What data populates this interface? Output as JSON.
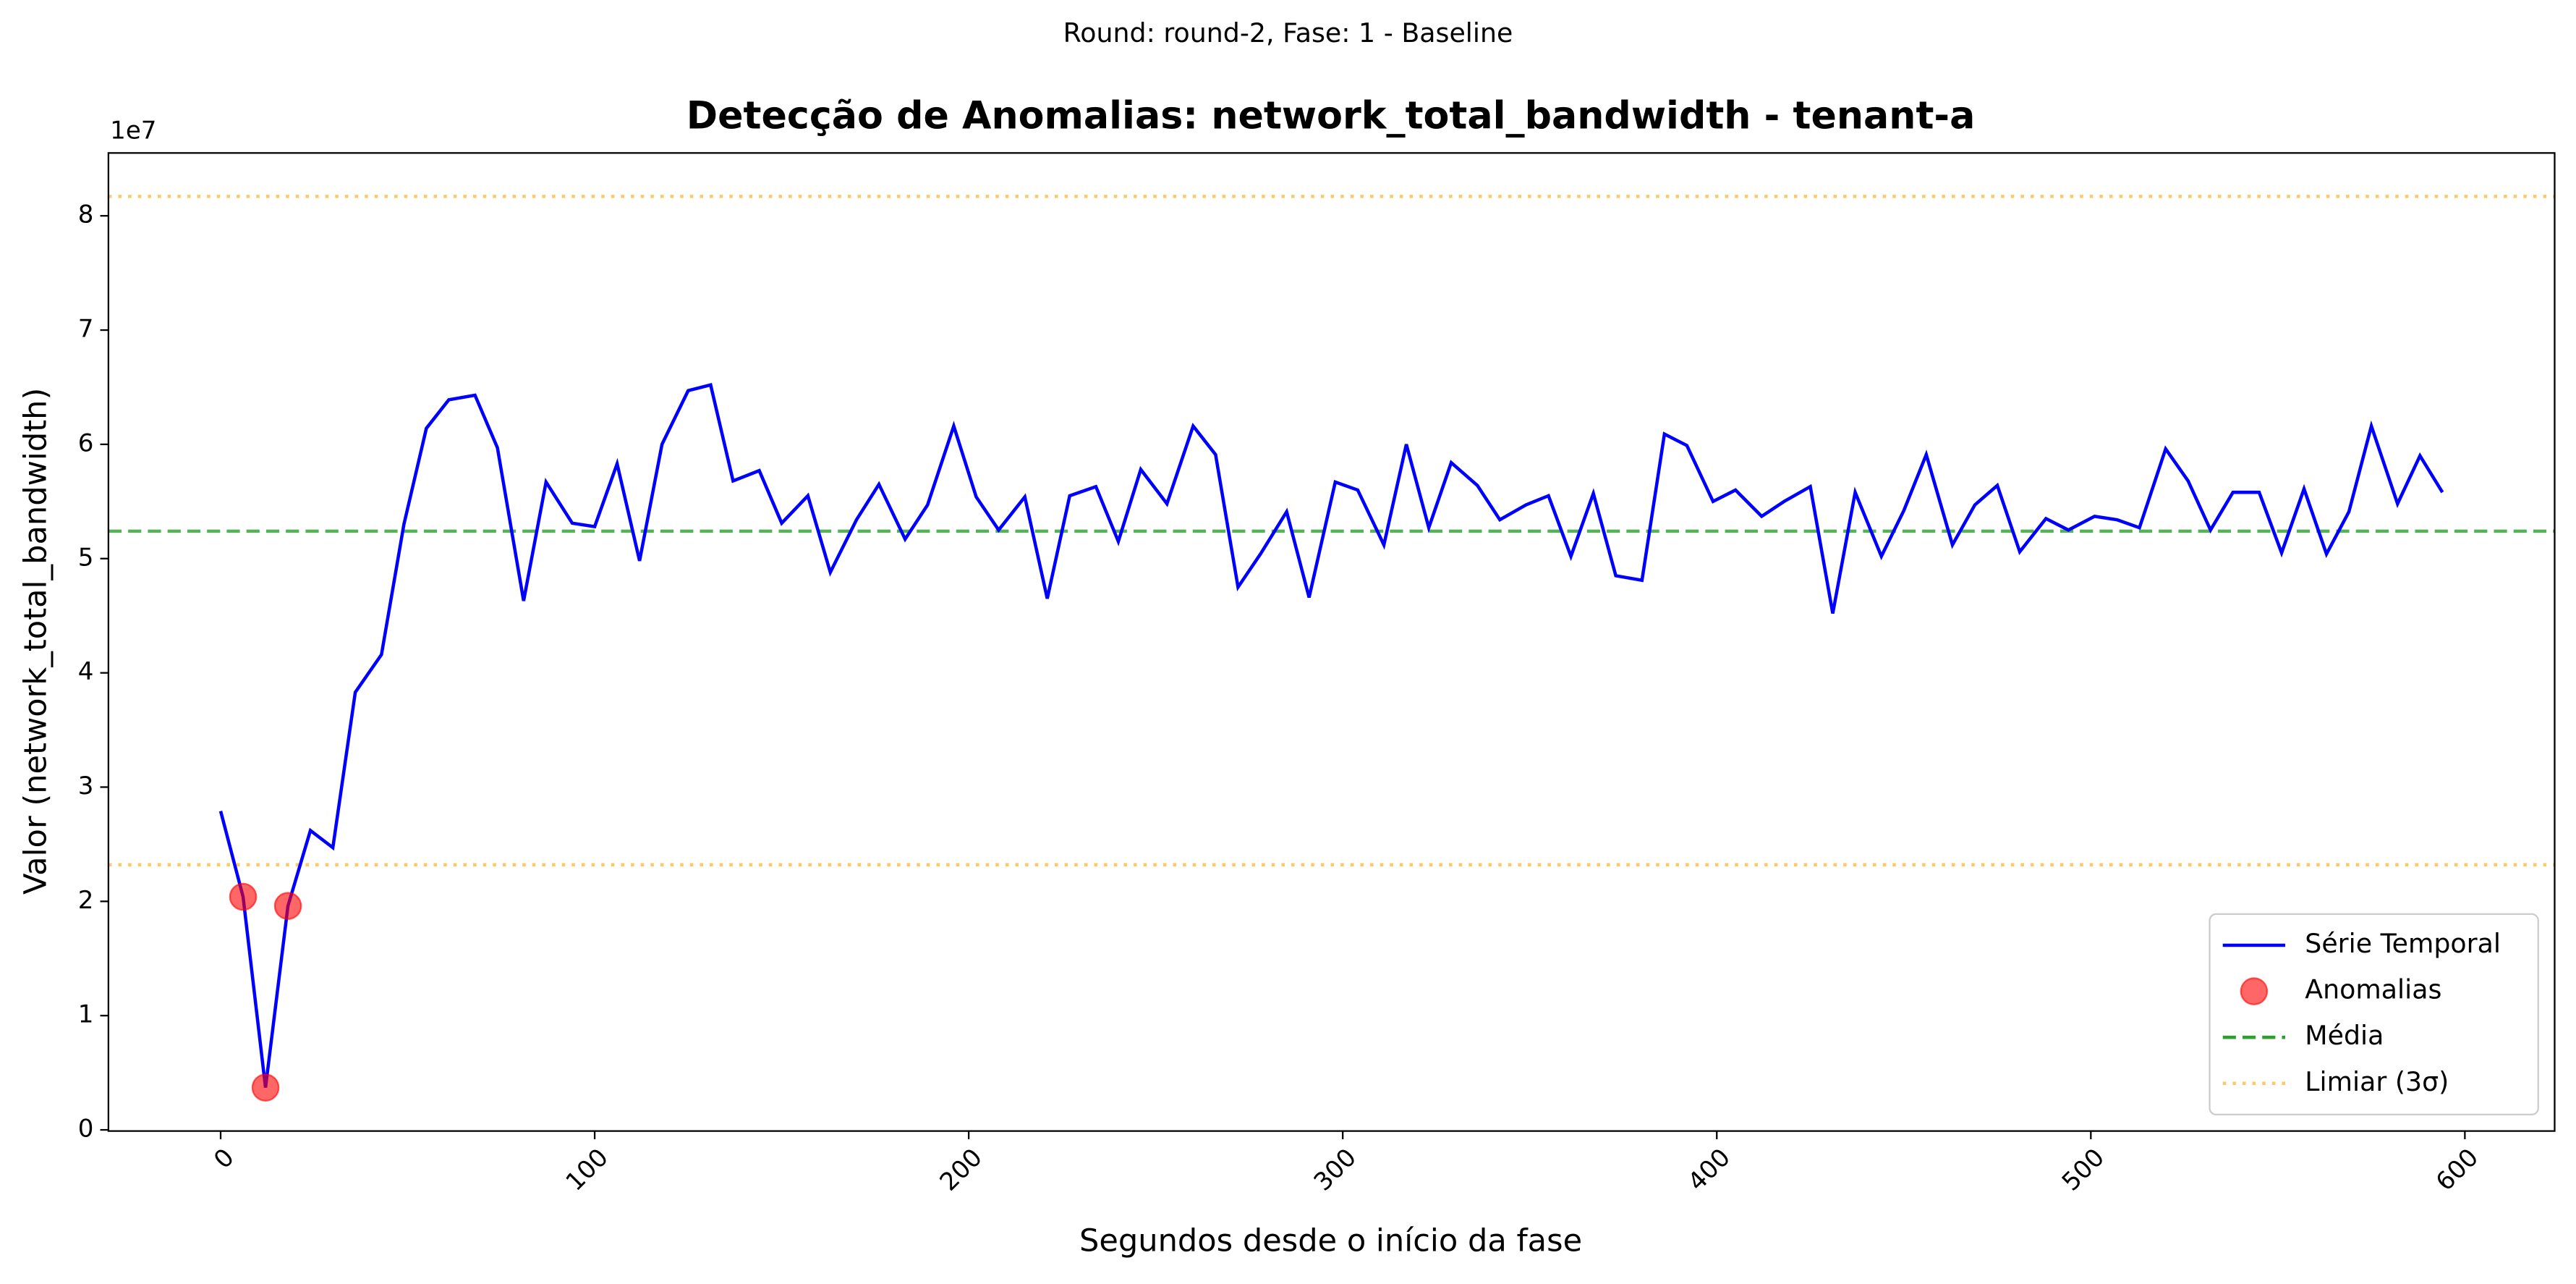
{
  "chart_data": {
    "type": "line",
    "suptitle": "Round: round-2, Fase: 1 - Baseline",
    "title": "Detecção de Anomalias: network_total_bandwidth - tenant-a",
    "x_label": "Segundos desde o início da fase",
    "y_label": "Valor (network_total_bandwidth)",
    "y_offset_label": "1e7",
    "xlim": [
      -30,
      624
    ],
    "ylim": [
      -0.01,
      8.55
    ],
    "xticks": [
      0,
      100,
      200,
      300,
      400,
      500,
      600
    ],
    "yticks": [
      0,
      1,
      2,
      3,
      4,
      5,
      6,
      7,
      8
    ],
    "grid": false,
    "legend": "lower right",
    "series": [
      {
        "name": "Série Temporal",
        "type": "line",
        "color": "#0000ff",
        "x": [
          0,
          6,
          12,
          18,
          24,
          30,
          36,
          43,
          49,
          55,
          61,
          68,
          74,
          81,
          87,
          94,
          100,
          106,
          112,
          118,
          125,
          131,
          137,
          144,
          150,
          157,
          163,
          170,
          176,
          183,
          189,
          196,
          202,
          208,
          215,
          221,
          227,
          234,
          240,
          246,
          253,
          260,
          266,
          272,
          278,
          285,
          291,
          298,
          304,
          311,
          317,
          323,
          329,
          336,
          342,
          349,
          355,
          361,
          367,
          373,
          380,
          386,
          392,
          399,
          405,
          412,
          418,
          425,
          431,
          437,
          444,
          450,
          456,
          463,
          469,
          475,
          481,
          488,
          494,
          501,
          507,
          513,
          520,
          526,
          532,
          538,
          545,
          551,
          557,
          563,
          569,
          575,
          582,
          588,
          594
        ],
        "values": [
          2.79,
          2.04,
          0.37,
          1.96,
          2.62,
          2.47,
          3.83,
          4.16,
          5.3,
          6.14,
          6.39,
          6.43,
          5.97,
          4.63,
          5.67,
          5.31,
          5.28,
          5.83,
          4.98,
          6.0,
          6.47,
          6.52,
          5.68,
          5.77,
          5.31,
          5.55,
          4.88,
          5.34,
          5.65,
          5.17,
          5.47,
          6.16,
          5.54,
          5.25,
          5.54,
          4.65,
          5.55,
          5.63,
          5.15,
          5.78,
          5.48,
          6.16,
          5.91,
          4.75,
          5.04,
          5.41,
          4.66,
          5.67,
          5.6,
          5.12,
          6.0,
          5.27,
          5.84,
          5.64,
          5.34,
          5.47,
          5.55,
          5.02,
          5.57,
          4.85,
          4.81,
          6.09,
          5.99,
          5.5,
          5.6,
          5.37,
          5.5,
          5.63,
          4.52,
          5.58,
          5.02,
          5.42,
          5.91,
          5.12,
          5.47,
          5.64,
          5.06,
          5.35,
          5.25,
          5.37,
          5.34,
          5.27,
          5.96,
          5.68,
          5.25,
          5.58,
          5.58,
          5.05,
          5.61,
          5.04,
          5.41,
          6.16,
          5.48,
          5.9,
          5.58
        ]
      },
      {
        "name": "Anomalias",
        "type": "scatter",
        "color": "#ff0000",
        "x": [
          6,
          12,
          18
        ],
        "values": [
          2.04,
          0.37,
          1.96
        ]
      }
    ],
    "reference_lines": [
      {
        "name": "Média",
        "color": "#2ca02c",
        "style": "dashed",
        "values": [
          5.24
        ]
      },
      {
        "name": "Limiar (3σ)",
        "color": "#ffa500",
        "style": "dotted",
        "values": [
          8.17,
          2.32
        ]
      }
    ]
  }
}
